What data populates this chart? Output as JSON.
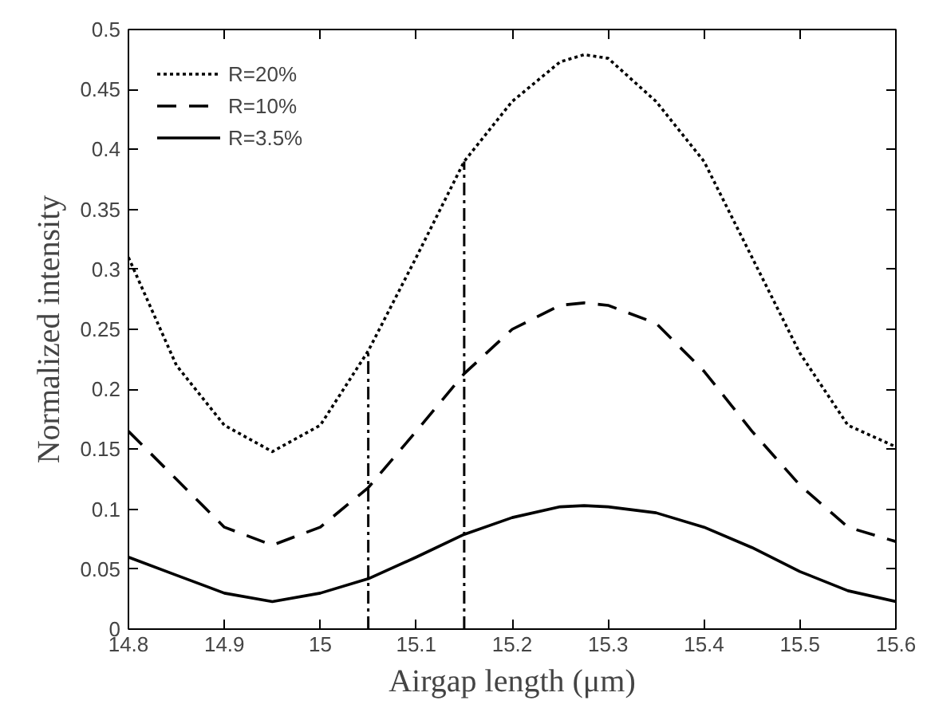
{
  "chart_data": {
    "type": "line",
    "xlabel": "Airgap length (μm)",
    "ylabel": "Normalized intensity",
    "x": [
      14.8,
      14.85,
      14.9,
      14.95,
      15.0,
      15.05,
      15.1,
      15.15,
      15.2,
      15.25,
      15.275,
      15.3,
      15.35,
      15.4,
      15.45,
      15.5,
      15.55,
      15.6
    ],
    "series": [
      {
        "name": "R=20%",
        "color": "#000000",
        "line_style": "dotted",
        "values": [
          0.31,
          0.22,
          0.17,
          0.148,
          0.17,
          0.232,
          0.31,
          0.39,
          0.44,
          0.473,
          0.479,
          0.476,
          0.44,
          0.39,
          0.31,
          0.23,
          0.17,
          0.152
        ]
      },
      {
        "name": "R=10%",
        "color": "#000000",
        "line_style": "dashed",
        "values": [
          0.165,
          0.125,
          0.085,
          0.07,
          0.085,
          0.118,
          0.165,
          0.213,
          0.25,
          0.27,
          0.272,
          0.27,
          0.255,
          0.215,
          0.165,
          0.12,
          0.085,
          0.073
        ]
      },
      {
        "name": "R=3.5%",
        "color": "#000000",
        "line_style": "solid",
        "values": [
          0.06,
          0.045,
          0.03,
          0.023,
          0.03,
          0.042,
          0.06,
          0.079,
          0.093,
          0.102,
          0.103,
          0.102,
          0.097,
          0.085,
          0.068,
          0.048,
          0.032,
          0.023
        ]
      }
    ],
    "ref_lines": [
      {
        "axis": "x",
        "value": 15.05,
        "color": "#000000"
      },
      {
        "axis": "x",
        "value": 15.15,
        "color": "#000000"
      }
    ],
    "xlim": [
      14.8,
      15.6
    ],
    "xticks": [
      14.8,
      14.9,
      15,
      15.1,
      15.2,
      15.3,
      15.4,
      15.5,
      15.6
    ],
    "ylim": [
      0,
      0.5
    ],
    "yticks": [
      0,
      0.05,
      0.1,
      0.15,
      0.2,
      0.25,
      0.3,
      0.35,
      0.4,
      0.45,
      0.5
    ],
    "legend": "top left",
    "grid": false
  }
}
